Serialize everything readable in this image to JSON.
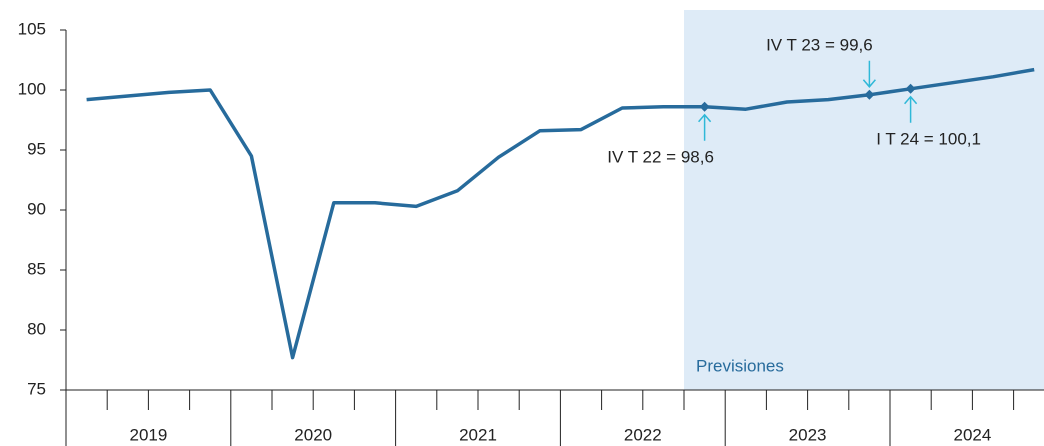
{
  "chart_data": {
    "type": "line",
    "categories": [
      null,
      null,
      null,
      null,
      null,
      null,
      null,
      null,
      null,
      null,
      null,
      null,
      null,
      null,
      null,
      null,
      null,
      null,
      null,
      null,
      null,
      null,
      null,
      null
    ],
    "years": [
      "2019",
      "2020",
      "2021",
      "2022",
      "2023",
      "2024"
    ],
    "series": [
      {
        "color": "#276b9c",
        "values": [
          99.2,
          99.5,
          99.8,
          100.0,
          94.5,
          77.7,
          90.6,
          90.6,
          90.3,
          91.6,
          94.4,
          96.6,
          96.7,
          98.5,
          98.6,
          98.6,
          98.4,
          99.0,
          99.2,
          99.6,
          100.1,
          100.6,
          101.1,
          101.7
        ]
      }
    ],
    "ylim": [
      75,
      105
    ],
    "yticks": [
      75,
      80,
      85,
      90,
      95,
      100,
      105
    ],
    "forecast": {
      "label": "Previsiones",
      "color": "#deebf7"
    },
    "annotations": [
      {
        "text": "IV T 22 = 98,6",
        "index": 15,
        "position": "below"
      },
      {
        "text": "IV T 23 = 99,6",
        "index": 19,
        "position": "above"
      },
      {
        "text": "I T 24 = 100,1",
        "index": 20,
        "position": "below"
      }
    ],
    "annotation_color": "#2fb8d8"
  }
}
